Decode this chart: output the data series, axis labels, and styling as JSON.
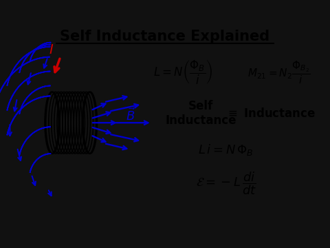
{
  "bg_color": "#ffffff",
  "outer_bg": "#111111",
  "title": "Self Inductance Explained",
  "title_fontsize": 15,
  "title_color": "#000000",
  "coil_color": "#000000",
  "field_color": "#0000cc",
  "current_color": "#cc0000"
}
